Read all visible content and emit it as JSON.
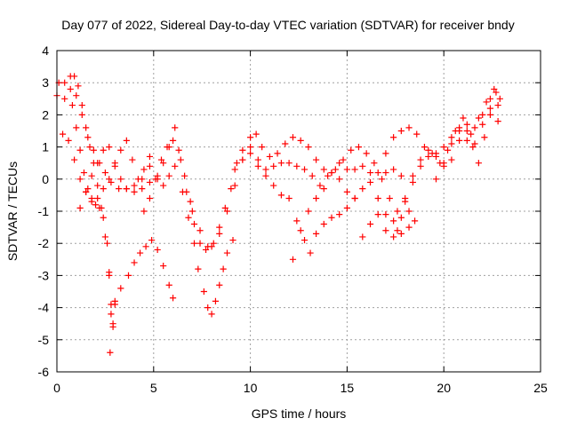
{
  "chart_data": {
    "type": "scatter",
    "title": "Day 077 of 2022, Sidereal Day-to-day VTEC variation (SDTVAR) for receiver bndy",
    "xlabel": "GPS time / hours",
    "ylabel": "SDTVAR / TECUs",
    "xlim": [
      0,
      25
    ],
    "ylim": [
      -6,
      4
    ],
    "xticks": [
      "0",
      "5",
      "10",
      "15",
      "20",
      "25"
    ],
    "yticks": [
      "-6",
      "-5",
      "-4",
      "-3",
      "-2",
      "-1",
      "0",
      "1",
      "2",
      "3",
      "4"
    ],
    "grid": true,
    "marker": "plus",
    "color": "#ff0000",
    "series": [
      {
        "points": [
          [
            0.0,
            2.6
          ],
          [
            0.4,
            2.5
          ],
          [
            0.7,
            2.8
          ],
          [
            1.0,
            2.6
          ],
          [
            1.3,
            2.0
          ],
          [
            1.6,
            1.3
          ],
          [
            1.9,
            0.9
          ],
          [
            2.2,
            0.5
          ],
          [
            2.5,
            0.2
          ],
          [
            2.8,
            -0.1
          ],
          [
            3.2,
            -0.3
          ],
          [
            3.6,
            -0.3
          ],
          [
            4.0,
            -0.4
          ],
          [
            4.4,
            -0.3
          ],
          [
            4.8,
            -0.1
          ],
          [
            5.2,
            0.1
          ],
          [
            5.5,
            0.5
          ],
          [
            5.8,
            1.0
          ],
          [
            6.1,
            1.6
          ],
          [
            6.4,
            0.6
          ],
          [
            6.7,
            -0.4
          ],
          [
            7.0,
            -1.0
          ],
          [
            7.4,
            -1.6
          ],
          [
            7.8,
            -2.1
          ],
          [
            8.1,
            -2.0
          ],
          [
            8.4,
            -1.5
          ],
          [
            8.7,
            -0.9
          ],
          [
            9.0,
            -0.3
          ],
          [
            9.3,
            0.5
          ],
          [
            9.6,
            0.9
          ],
          [
            10.0,
            1.0
          ],
          [
            10.4,
            0.6
          ],
          [
            10.8,
            0.3
          ],
          [
            11.2,
            0.4
          ],
          [
            11.6,
            0.5
          ],
          [
            12.0,
            0.5
          ],
          [
            12.4,
            0.4
          ],
          [
            12.8,
            0.3
          ],
          [
            13.2,
            0.1
          ],
          [
            13.6,
            -0.2
          ],
          [
            14.0,
            0.1
          ],
          [
            14.4,
            0.3
          ],
          [
            14.8,
            0.6
          ],
          [
            15.2,
            0.9
          ],
          [
            15.6,
            1.0
          ],
          [
            16.0,
            0.8
          ],
          [
            16.4,
            0.5
          ],
          [
            16.8,
            0.0
          ],
          [
            17.2,
            -0.6
          ],
          [
            17.6,
            -1.0
          ],
          [
            18.0,
            -0.6
          ],
          [
            18.4,
            -0.1
          ],
          [
            18.8,
            0.4
          ],
          [
            19.2,
            0.7
          ],
          [
            19.6,
            0.8
          ],
          [
            20.0,
            1.0
          ],
          [
            20.4,
            1.3
          ],
          [
            20.8,
            1.5
          ],
          [
            21.2,
            1.2
          ],
          [
            21.6,
            1.6
          ],
          [
            22.0,
            2.0
          ],
          [
            22.4,
            2.5
          ],
          [
            22.8,
            2.3
          ]
        ]
      },
      {
        "points": [
          [
            0.1,
            3.0
          ],
          [
            0.4,
            3.0
          ],
          [
            0.7,
            3.2
          ],
          [
            0.9,
            3.2
          ],
          [
            1.1,
            2.9
          ],
          [
            1.3,
            2.3
          ],
          [
            1.5,
            1.6
          ],
          [
            1.7,
            1.0
          ],
          [
            1.9,
            0.5
          ],
          [
            2.1,
            -0.2
          ],
          [
            2.3,
            -0.9
          ],
          [
            2.5,
            -1.8
          ],
          [
            2.7,
            -2.9
          ],
          [
            2.8,
            -3.9
          ],
          [
            2.9,
            -4.6
          ],
          [
            3.0,
            -3.8
          ],
          [
            3.3,
            -3.4
          ],
          [
            3.7,
            -3.0
          ],
          [
            4.0,
            -2.6
          ],
          [
            4.3,
            -2.3
          ],
          [
            4.6,
            -2.1
          ],
          [
            4.9,
            -1.9
          ],
          [
            5.2,
            -2.2
          ],
          [
            5.5,
            -2.7
          ],
          [
            5.8,
            -3.3
          ],
          [
            6.0,
            -3.7
          ]
        ]
      },
      {
        "points": [
          [
            0.8,
            2.3
          ],
          [
            1.0,
            1.6
          ],
          [
            1.2,
            0.9
          ],
          [
            1.4,
            0.2
          ],
          [
            1.6,
            -0.3
          ],
          [
            1.8,
            -0.6
          ],
          [
            2.0,
            -0.8
          ],
          [
            2.2,
            -0.9
          ],
          [
            2.4,
            -1.2
          ],
          [
            2.6,
            -2.0
          ],
          [
            2.7,
            -3.0
          ],
          [
            2.8,
            -4.2
          ],
          [
            2.75,
            -5.4
          ],
          [
            2.9,
            -4.5
          ],
          [
            3.0,
            -3.9
          ]
        ]
      },
      {
        "points": [
          [
            0.3,
            1.4
          ],
          [
            0.6,
            1.2
          ],
          [
            0.9,
            0.6
          ],
          [
            1.2,
            0.0
          ],
          [
            1.5,
            -0.4
          ],
          [
            1.8,
            -0.7
          ],
          [
            2.1,
            -0.6
          ],
          [
            2.4,
            -0.3
          ],
          [
            2.7,
            0.0
          ],
          [
            3.0,
            0.4
          ],
          [
            3.3,
            0.9
          ],
          [
            3.6,
            1.2
          ],
          [
            3.9,
            0.6
          ],
          [
            4.2,
            0.0
          ],
          [
            4.5,
            0.3
          ],
          [
            4.8,
            0.7
          ]
        ]
      },
      {
        "points": [
          [
            1.2,
            -0.9
          ],
          [
            1.5,
            -0.4
          ],
          [
            1.8,
            0.1
          ],
          [
            2.1,
            0.5
          ],
          [
            2.4,
            0.9
          ],
          [
            2.7,
            1.0
          ],
          [
            3.0,
            0.5
          ],
          [
            3.3,
            0.0
          ],
          [
            3.6,
            -0.3
          ],
          [
            4.0,
            -0.2
          ],
          [
            4.4,
            0.0
          ],
          [
            4.8,
            0.4
          ],
          [
            5.2,
            0.0
          ],
          [
            5.5,
            -0.2
          ],
          [
            5.8,
            0.1
          ],
          [
            6.1,
            0.4
          ],
          [
            6.5,
            -0.4
          ],
          [
            6.8,
            -1.2
          ],
          [
            7.1,
            -2.0
          ],
          [
            7.3,
            -2.8
          ],
          [
            7.6,
            -3.5
          ],
          [
            7.8,
            -4.0
          ],
          [
            8.0,
            -4.2
          ],
          [
            8.2,
            -3.8
          ],
          [
            8.4,
            -3.3
          ],
          [
            8.6,
            -2.8
          ],
          [
            8.8,
            -2.3
          ],
          [
            9.1,
            -1.9
          ]
        ]
      },
      {
        "points": [
          [
            4.5,
            -1.0
          ],
          [
            4.8,
            -0.6
          ],
          [
            5.1,
            0.0
          ],
          [
            5.4,
            0.6
          ],
          [
            5.7,
            1.0
          ],
          [
            6.0,
            1.2
          ],
          [
            6.3,
            0.9
          ],
          [
            6.6,
            0.1
          ],
          [
            6.9,
            -0.7
          ],
          [
            7.1,
            -1.4
          ],
          [
            7.4,
            -2.0
          ],
          [
            7.7,
            -2.2
          ],
          [
            8.0,
            -2.1
          ],
          [
            8.4,
            -1.7
          ],
          [
            8.8,
            -1.0
          ],
          [
            9.2,
            -0.2
          ],
          [
            9.6,
            0.6
          ],
          [
            10.0,
            1.3
          ],
          [
            10.3,
            1.4
          ],
          [
            10.6,
            1.0
          ],
          [
            11.0,
            0.7
          ],
          [
            11.4,
            0.8
          ],
          [
            11.8,
            1.1
          ],
          [
            12.2,
            1.3
          ],
          [
            12.6,
            1.2
          ],
          [
            13.0,
            1.0
          ],
          [
            13.4,
            0.6
          ],
          [
            13.8,
            0.3
          ],
          [
            14.2,
            0.2
          ],
          [
            14.6,
            0.0
          ],
          [
            15.0,
            -0.4
          ],
          [
            15.4,
            -0.6
          ]
        ]
      },
      {
        "points": [
          [
            9.2,
            0.3
          ],
          [
            9.6,
            0.6
          ],
          [
            10.0,
            0.8
          ],
          [
            10.4,
            0.4
          ],
          [
            10.8,
            0.1
          ],
          [
            11.2,
            -0.2
          ],
          [
            11.6,
            -0.5
          ],
          [
            12.0,
            -0.6
          ],
          [
            12.4,
            -1.3
          ],
          [
            12.8,
            -1.9
          ],
          [
            13.1,
            -2.3
          ],
          [
            13.4,
            -1.7
          ],
          [
            13.8,
            -1.4
          ],
          [
            14.2,
            -1.2
          ],
          [
            14.6,
            -1.1
          ],
          [
            15.0,
            -0.9
          ],
          [
            15.4,
            -0.6
          ],
          [
            15.8,
            -0.3
          ],
          [
            16.2,
            -0.1
          ],
          [
            16.6,
            0.2
          ],
          [
            17.0,
            0.2
          ],
          [
            17.4,
            0.3
          ],
          [
            17.8,
            0.1
          ]
        ]
      },
      {
        "points": [
          [
            12.2,
            -2.5
          ],
          [
            12.6,
            -1.6
          ],
          [
            13.0,
            -1.0
          ],
          [
            13.4,
            -0.6
          ],
          [
            13.8,
            -0.3
          ],
          [
            14.2,
            0.2
          ],
          [
            14.6,
            0.5
          ],
          [
            15.0,
            0.3
          ],
          [
            15.4,
            0.3
          ],
          [
            15.8,
            0.4
          ],
          [
            16.2,
            0.2
          ],
          [
            16.6,
            -0.6
          ],
          [
            17.0,
            -1.1
          ],
          [
            17.4,
            -1.3
          ],
          [
            17.8,
            -1.2
          ],
          [
            18.2,
            -1.0
          ]
        ]
      },
      {
        "points": [
          [
            15.8,
            -1.8
          ],
          [
            16.2,
            -1.4
          ],
          [
            16.6,
            -1.1
          ],
          [
            17.0,
            -1.6
          ],
          [
            17.4,
            -1.8
          ],
          [
            17.8,
            -1.7
          ],
          [
            18.2,
            -1.5
          ],
          [
            18.5,
            -1.3
          ]
        ]
      },
      {
        "points": [
          [
            17.6,
            -1.6
          ],
          [
            18.0,
            -0.7
          ],
          [
            18.4,
            0.1
          ],
          [
            18.8,
            0.6
          ],
          [
            19.2,
            0.9
          ],
          [
            19.6,
            0.7
          ],
          [
            20.0,
            0.4
          ],
          [
            20.4,
            0.6
          ],
          [
            20.8,
            1.2
          ],
          [
            21.2,
            1.5
          ],
          [
            21.6,
            1.1
          ],
          [
            22.0,
            1.7
          ],
          [
            22.4,
            2.0
          ],
          [
            22.8,
            1.8
          ]
        ]
      },
      {
        "points": [
          [
            17.0,
            0.8
          ],
          [
            17.4,
            1.3
          ],
          [
            17.8,
            1.5
          ],
          [
            18.2,
            1.6
          ],
          [
            18.6,
            1.4
          ],
          [
            19.0,
            1.0
          ],
          [
            19.4,
            0.8
          ],
          [
            19.8,
            0.5
          ],
          [
            20.2,
            0.9
          ],
          [
            20.6,
            1.5
          ],
          [
            21.0,
            1.9
          ],
          [
            21.4,
            1.4
          ],
          [
            21.8,
            1.9
          ],
          [
            22.2,
            2.4
          ],
          [
            22.6,
            2.8
          ],
          [
            22.9,
            2.5
          ]
        ]
      },
      {
        "points": [
          [
            19.6,
            0.0
          ],
          [
            20.0,
            0.5
          ],
          [
            20.4,
            1.1
          ],
          [
            20.8,
            1.6
          ],
          [
            21.2,
            1.7
          ],
          [
            21.5,
            1.0
          ],
          [
            21.8,
            0.5
          ],
          [
            22.1,
            1.3
          ],
          [
            22.4,
            2.2
          ],
          [
            22.7,
            2.7
          ]
        ]
      }
    ]
  }
}
